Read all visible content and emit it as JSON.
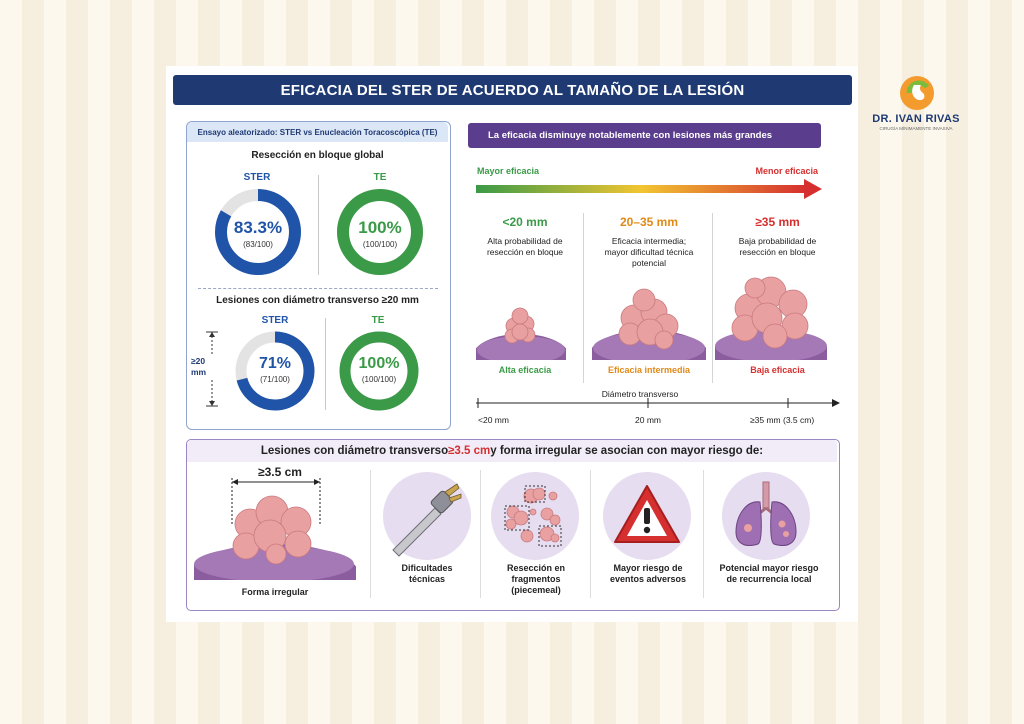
{
  "header": {
    "title": "EFICACIA DEL STER DE ACUERDO AL TAMAÑO DE LA LESIÓN"
  },
  "brand": {
    "name": "DR. IVAN RIVAS",
    "tagline": "CIRUGÍA MÍNIMAMENTE INVASIVA",
    "logo_icon": "stomach-logo-icon"
  },
  "left": {
    "header": "Ensayo aleatorizado: STER vs Enucleación Toracoscópica (TE)",
    "section1": {
      "title": "Resección en bloque global",
      "ster": {
        "label": "STER",
        "pct": "83.3%",
        "count": "(83/100)",
        "fraction": 0.833
      },
      "te": {
        "label": "TE",
        "pct": "100%",
        "count": "(100/100)",
        "fraction": 1.0
      }
    },
    "section2": {
      "title": "Lesiones con diámetro transverso ≥20 mm",
      "size_label_1": "≥20",
      "size_label_2": "mm",
      "ster": {
        "label": "STER",
        "pct": "71%",
        "count": "(71/100)",
        "fraction": 0.71
      },
      "te": {
        "label": "TE",
        "pct": "100%",
        "count": "(100/100)",
        "fraction": 1.0
      }
    }
  },
  "right": {
    "banner": "La eficacia disminuye notablemente con lesiones más grandes",
    "gradient_left": "Mayor eficacia",
    "gradient_right": "Menor eficacia",
    "columns": [
      {
        "size": "<20 mm",
        "desc": [
          "Alta probabilidad de",
          "resección en bloque"
        ],
        "efficacy": "Alta eficacia",
        "color": "#3a9a47"
      },
      {
        "size": "20–35 mm",
        "desc": [
          "Eficacia intermedia;",
          "mayor dificultad técnica",
          "potencial"
        ],
        "efficacy": "Eficacia intermedia",
        "color": "#e08a17"
      },
      {
        "size": "≥35 mm",
        "desc": [
          "Baja probabilidad de",
          "resección en bloque"
        ],
        "efficacy": "Baja eficacia",
        "color": "#d62f2f"
      }
    ],
    "axis": {
      "title": "Diámetro transverso",
      "ticks": [
        "<20 mm",
        "20 mm",
        "≥35 mm (3.5 cm)"
      ]
    }
  },
  "bottom": {
    "title_pre": "Lesiones con diámetro transverso ",
    "title_highlight": "≥3.5 cm",
    "title_post": " y forma irregular se asocian con mayor riesgo de:",
    "measure": "≥3.5 cm",
    "main_caption": "Forma irregular",
    "risks": [
      {
        "icon": "surgical-instrument-icon",
        "lines": [
          "Dificultades",
          "técnicas"
        ]
      },
      {
        "icon": "fragments-icon",
        "lines": [
          "Resección en",
          "fragmentos",
          "(piecemeal)"
        ]
      },
      {
        "icon": "warning-icon",
        "lines": [
          "Mayor riesgo de",
          "eventos adversos"
        ]
      },
      {
        "icon": "lungs-icon",
        "lines": [
          "Potencial mayor riesgo",
          "de recurrencia local"
        ]
      }
    ]
  },
  "colors": {
    "navy": "#1f3a73",
    "blue": "#2054a8",
    "green": "#3a9a47",
    "orange": "#e08a17",
    "red": "#d62f2f",
    "purple": "#5b3d8e"
  }
}
